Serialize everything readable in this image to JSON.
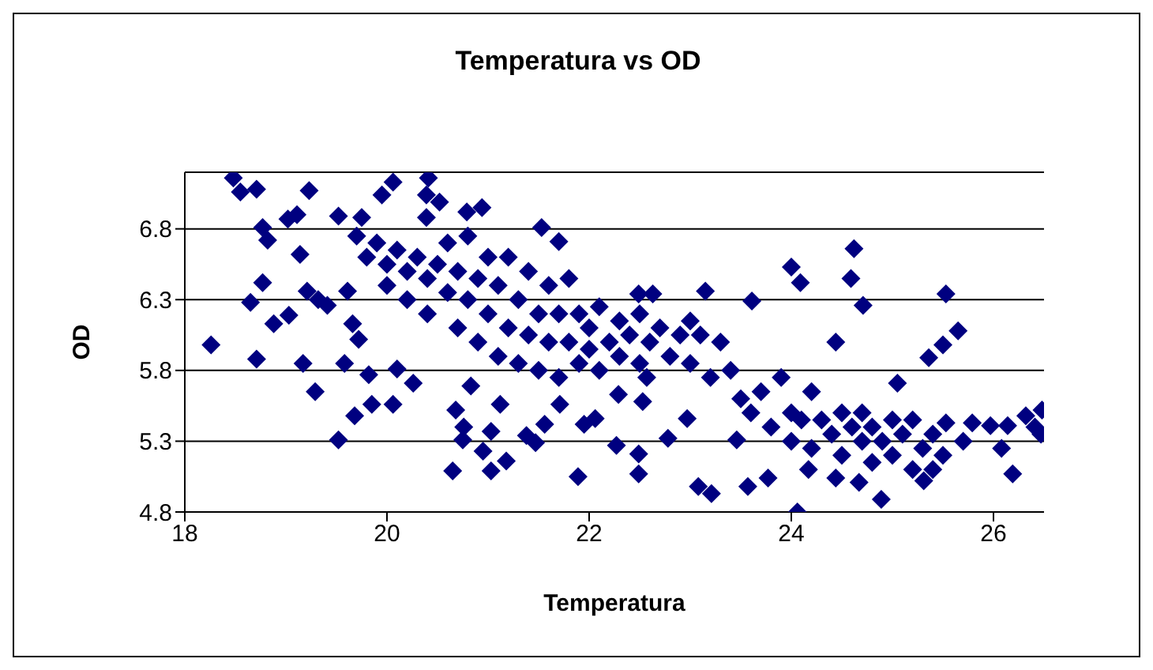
{
  "chart_data": {
    "type": "scatter",
    "title": "Temperatura vs OD",
    "xlabel": "Temperatura",
    "ylabel": "OD",
    "xlim": [
      18,
      26.5
    ],
    "xticks": [
      18,
      20,
      22,
      24,
      26
    ],
    "ylim": [
      4.8,
      7.2
    ],
    "yticks": [
      4.8,
      5.3,
      5.8,
      6.3,
      6.8
    ],
    "grid": "y",
    "marker": "diamond",
    "legend": false,
    "series": [
      {
        "color": "#000080",
        "x": [
          18.26,
          18.48,
          18.55,
          18.71,
          18.77,
          18.82,
          18.77,
          18.65,
          18.71,
          18.88,
          19.03,
          19.02,
          19.11,
          19.14,
          19.23,
          19.17,
          19.29,
          19.21,
          19.32,
          19.41,
          19.52,
          19.58,
          19.52,
          19.61,
          19.66,
          19.72,
          19.68,
          19.82,
          19.85,
          19.75,
          19.95,
          20.06,
          20.06,
          20.1,
          20.26,
          20.41,
          20.39,
          20.52,
          20.39,
          20.65,
          20.68,
          20.75,
          20.76,
          20.79,
          20.94,
          20.83,
          21.03,
          21.03,
          20.95,
          21.18,
          21.12,
          21.38,
          21.47,
          21.56,
          21.53,
          21.7,
          21.89,
          21.71,
          21.95,
          22.06,
          22.29,
          22.27,
          22.49,
          22.49,
          22.53,
          22.57,
          22.49,
          22.63,
          22.78,
          22.97,
          23.08,
          23.21,
          23.15,
          23.61,
          23.57,
          23.77,
          23.46,
          24.0,
          24.09,
          24.06,
          24.17,
          24.44,
          24.44,
          24.62,
          24.59,
          24.71,
          24.67,
          24.89,
          25.05,
          25.31,
          25.53,
          25.36,
          25.5,
          25.65,
          25.53,
          25.7,
          25.79,
          25.97,
          26.14,
          26.08,
          26.19,
          26.32,
          26.41,
          26.48,
          26.47,
          19.7,
          19.8,
          19.9,
          20.0,
          20.0,
          20.1,
          20.2,
          20.2,
          20.3,
          20.4,
          20.4,
          20.5,
          20.6,
          20.6,
          20.7,
          20.7,
          20.8,
          20.8,
          20.9,
          20.9,
          21.0,
          21.0,
          21.1,
          21.1,
          21.2,
          21.2,
          21.3,
          21.3,
          21.4,
          21.4,
          21.5,
          21.5,
          21.6,
          21.6,
          21.7,
          21.7,
          21.8,
          21.8,
          21.9,
          21.9,
          22.0,
          22.0,
          22.1,
          22.1,
          22.2,
          22.3,
          22.3,
          22.4,
          22.5,
          22.5,
          22.6,
          22.7,
          22.8,
          22.9,
          23.0,
          23.0,
          23.1,
          23.2,
          23.3,
          23.4,
          23.5,
          23.6,
          23.7,
          23.8,
          23.9,
          24.0,
          24.0,
          24.1,
          24.2,
          24.2,
          24.3,
          24.4,
          24.5,
          24.5,
          24.6,
          24.7,
          24.7,
          24.8,
          24.8,
          24.9,
          25.0,
          25.0,
          25.1,
          25.2,
          25.2,
          25.3,
          25.4,
          25.4,
          25.5
        ],
        "values": [
          5.98,
          7.16,
          7.06,
          7.08,
          6.81,
          6.72,
          6.42,
          6.28,
          5.88,
          6.13,
          6.19,
          6.87,
          6.9,
          6.62,
          7.07,
          5.85,
          5.65,
          6.36,
          6.3,
          6.26,
          5.31,
          5.85,
          6.89,
          6.36,
          6.13,
          6.02,
          5.48,
          5.77,
          5.56,
          6.88,
          7.04,
          7.13,
          5.56,
          5.81,
          5.71,
          7.16,
          7.04,
          6.99,
          6.88,
          5.09,
          5.52,
          5.31,
          5.4,
          6.92,
          6.95,
          5.69,
          5.09,
          5.37,
          5.23,
          5.16,
          5.56,
          5.34,
          5.29,
          5.42,
          6.81,
          6.71,
          5.05,
          5.56,
          5.42,
          5.46,
          5.63,
          5.27,
          5.07,
          5.21,
          5.58,
          5.75,
          6.34,
          6.34,
          5.32,
          5.46,
          4.98,
          4.93,
          6.36,
          6.29,
          4.98,
          5.04,
          5.31,
          6.53,
          6.42,
          4.8,
          5.1,
          6.0,
          5.04,
          6.66,
          6.45,
          6.26,
          5.01,
          4.89,
          5.71,
          5.02,
          6.34,
          5.89,
          5.98,
          6.08,
          5.43,
          5.3,
          5.43,
          5.41,
          5.41,
          5.25,
          5.07,
          5.48,
          5.4,
          5.52,
          5.35,
          6.75,
          6.6,
          6.7,
          6.55,
          6.4,
          6.65,
          6.5,
          6.3,
          6.6,
          6.45,
          6.2,
          6.55,
          6.35,
          6.7,
          6.5,
          6.1,
          6.3,
          6.75,
          6.0,
          6.45,
          6.2,
          6.6,
          5.9,
          6.4,
          6.1,
          6.6,
          6.3,
          5.85,
          6.05,
          6.5,
          6.2,
          5.8,
          6.4,
          6.0,
          6.2,
          5.75,
          6.45,
          6.0,
          6.2,
          5.85,
          6.1,
          5.95,
          6.25,
          5.8,
          6.0,
          6.15,
          5.9,
          6.05,
          6.2,
          5.85,
          6.0,
          6.1,
          5.9,
          6.05,
          6.15,
          5.85,
          6.05,
          5.75,
          6.0,
          5.8,
          5.6,
          5.5,
          5.65,
          5.4,
          5.75,
          5.5,
          5.3,
          5.45,
          5.65,
          5.25,
          5.45,
          5.35,
          5.5,
          5.2,
          5.4,
          5.3,
          5.5,
          5.15,
          5.4,
          5.3,
          5.45,
          5.2,
          5.35,
          5.1,
          5.45,
          5.25,
          5.35,
          5.1,
          5.2
        ]
      }
    ]
  }
}
